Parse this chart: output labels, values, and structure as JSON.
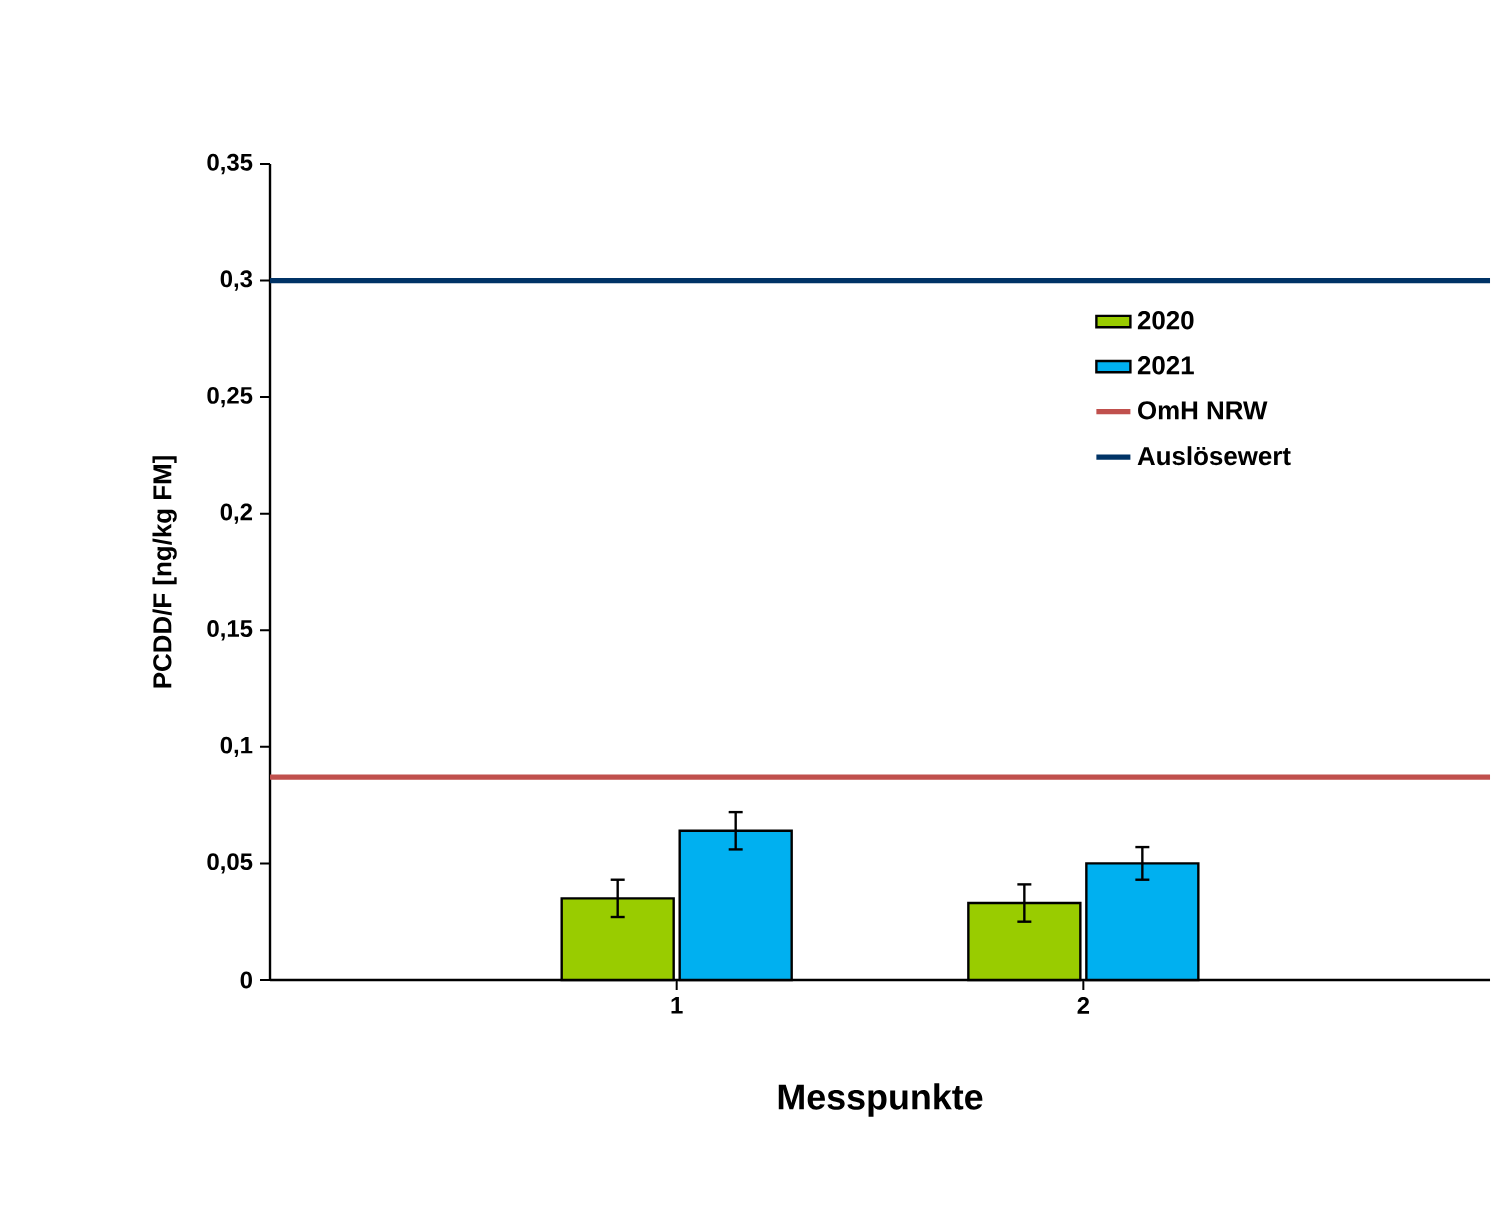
{
  "chart_data": {
    "type": "bar",
    "xlabel": "Messpunkte",
    "ylabel": "PCDD/F [ng/kg FM]",
    "categories": [
      null,
      "1",
      "2",
      null
    ],
    "series": [
      {
        "name": "2020",
        "color": "#99cc00",
        "values": [
          null,
          0.035,
          0.033,
          null
        ],
        "errors": [
          null,
          0.008,
          0.008,
          null
        ]
      },
      {
        "name": "2021",
        "color": "#00b0f0",
        "values": [
          null,
          0.064,
          0.05,
          null
        ],
        "errors": [
          null,
          0.008,
          0.007,
          null
        ]
      }
    ],
    "ylim": [
      0,
      0.35
    ],
    "yticks": [
      0,
      {
        "value": 0.05,
        "label": "0,05"
      },
      {
        "value": 0.1,
        "label": "0,1"
      },
      {
        "value": 0.15,
        "label": "0,15"
      },
      {
        "value": 0.2,
        "label": "0,2"
      },
      {
        "value": 0.25,
        "label": "0,25"
      },
      {
        "value": 0.3,
        "label": "0,3"
      },
      {
        "value": 0.35,
        "label": "0,35"
      }
    ],
    "ref_lines": [
      {
        "axis": "y",
        "value": 0.087,
        "label": "OmH NRW",
        "color": "#c0504d"
      },
      {
        "axis": "y",
        "value": 0.3,
        "label": "Auslösewert",
        "color": "#003366"
      }
    ],
    "legend": "top right",
    "grid": false
  }
}
